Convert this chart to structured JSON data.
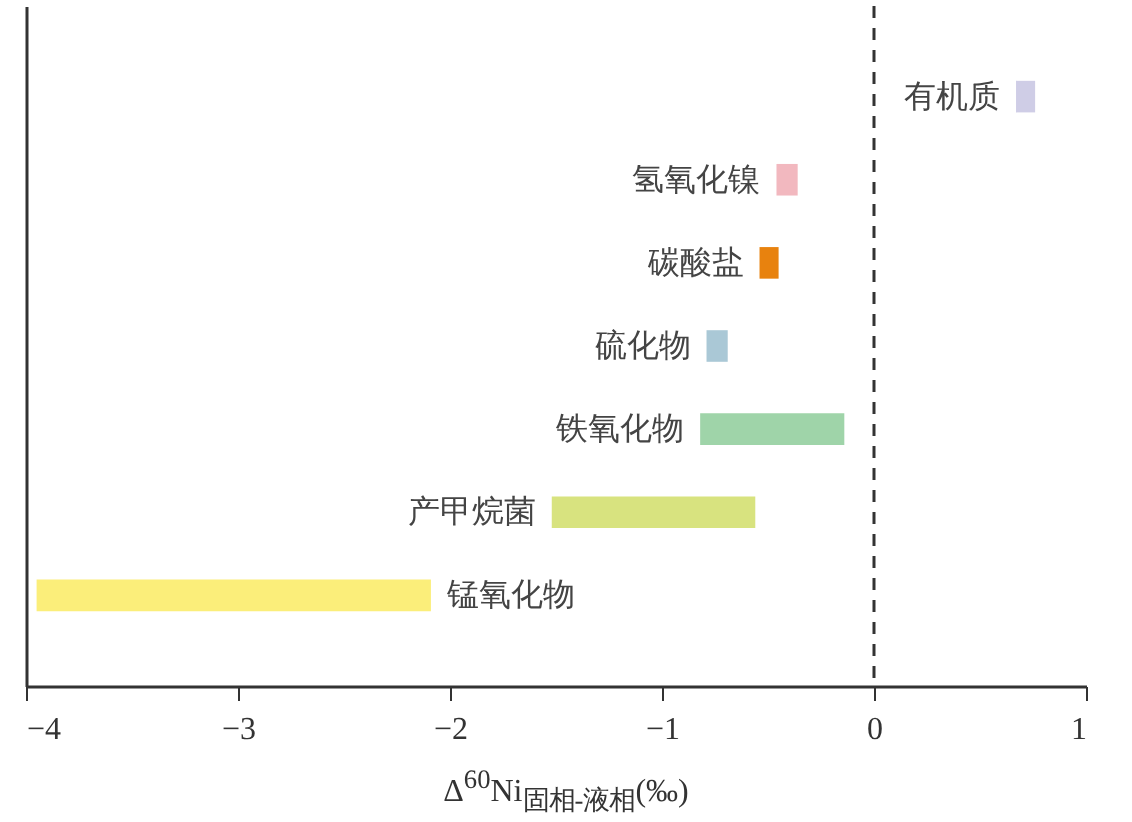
{
  "chart_data": {
    "type": "bar",
    "orientation": "horizontal",
    "xlabel": "Δ$^{60}$Ni$_{固相-液相}$(‰)",
    "categories": [
      "有机质",
      "氢氧化镍",
      "碳酸盐",
      "硫化物",
      "铁氧化物",
      "产甲烷菌",
      "锰氧化物"
    ],
    "base": [
      0.67,
      -0.46,
      -0.54,
      -0.79,
      -0.82,
      -1.52,
      -3.95
    ],
    "values": [
      0.09,
      0.1,
      0.09,
      0.1,
      0.68,
      0.96,
      1.86
    ],
    "colors": [
      "#cfcde6",
      "#f2b8bf",
      "#e8820e",
      "#aac8d6",
      "#9fd4a9",
      "#d8e37f",
      "#fbee7a"
    ],
    "xlim": [
      -4,
      1
    ],
    "xticks": [
      -4,
      -3,
      -2,
      -1,
      0,
      1
    ],
    "tick_labels": "x",
    "grid": false,
    "ref_lines": [
      {
        "axis": "x",
        "value": 0,
        "line_style": "dashed",
        "color": "#333333"
      }
    ]
  }
}
